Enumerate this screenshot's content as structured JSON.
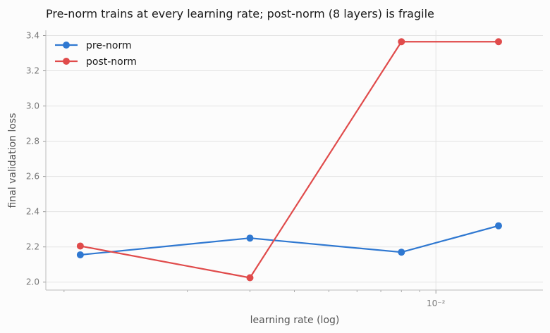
{
  "chart_data": {
    "type": "line",
    "title": "Pre-norm trains at every learning rate; post-norm (8 layers) is fragile",
    "xlabel": "learning rate (log)",
    "ylabel": "final validation loss",
    "x_scale": "log",
    "x": [
      0.001,
      0.003,
      0.008,
      0.015
    ],
    "xlim": [
      0.0008,
      0.02
    ],
    "ylim": [
      1.955,
      3.43
    ],
    "x_ticks": [
      {
        "value": 0.01,
        "label": "10⁻²"
      }
    ],
    "y_ticks": [
      {
        "value": 2.0,
        "label": "2.0"
      },
      {
        "value": 2.2,
        "label": "2.2"
      },
      {
        "value": 2.4,
        "label": "2.4"
      },
      {
        "value": 2.6,
        "label": "2.6"
      },
      {
        "value": 2.8,
        "label": "2.8"
      },
      {
        "value": 3.0,
        "label": "3.0"
      },
      {
        "value": 3.2,
        "label": "3.2"
      },
      {
        "value": 3.4,
        "label": "3.4"
      }
    ],
    "grid": true,
    "legend_position": "top-left",
    "series": [
      {
        "name": "pre-norm",
        "color": "#2f78d1",
        "values": [
          2.155,
          2.25,
          2.17,
          2.32
        ]
      },
      {
        "name": "post-norm",
        "color": "#e04b4b",
        "values": [
          2.205,
          2.025,
          3.365,
          3.365
        ]
      }
    ]
  }
}
